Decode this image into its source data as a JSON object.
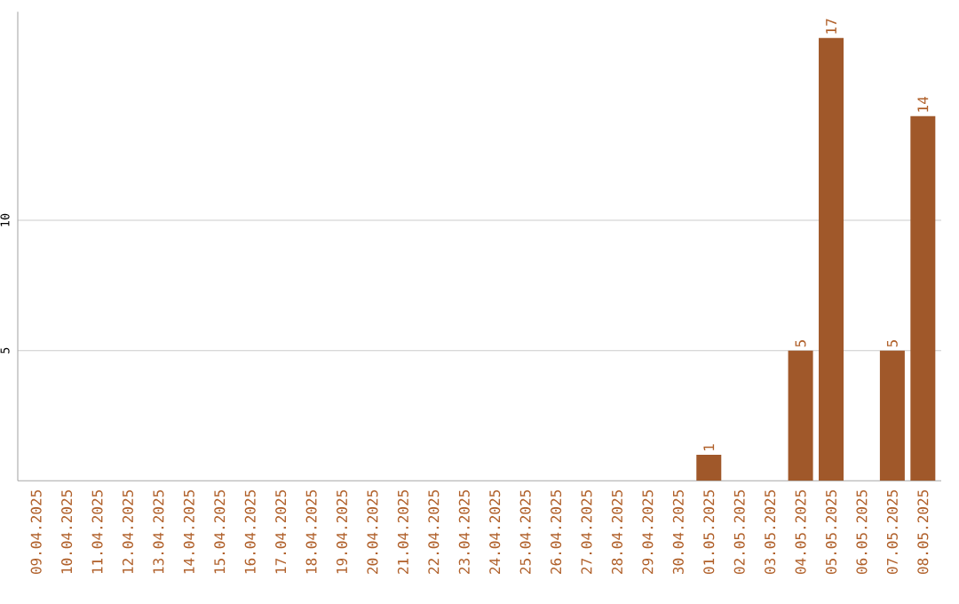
{
  "chart_data": {
    "type": "bar",
    "categories": [
      "09.04.2025",
      "10.04.2025",
      "11.04.2025",
      "12.04.2025",
      "13.04.2025",
      "14.04.2025",
      "15.04.2025",
      "16.04.2025",
      "17.04.2025",
      "18.04.2025",
      "19.04.2025",
      "20.04.2025",
      "21.04.2025",
      "22.04.2025",
      "23.04.2025",
      "24.04.2025",
      "25.04.2025",
      "26.04.2025",
      "27.04.2025",
      "28.04.2025",
      "29.04.2025",
      "30.04.2025",
      "01.05.2025",
      "02.05.2025",
      "03.05.2025",
      "04.05.2025",
      "05.05.2025",
      "06.05.2025",
      "07.05.2025",
      "08.05.2025"
    ],
    "values": [
      0,
      0,
      0,
      0,
      0,
      0,
      0,
      0,
      0,
      0,
      0,
      0,
      0,
      0,
      0,
      0,
      0,
      0,
      0,
      0,
      0,
      0,
      1,
      0,
      0,
      5,
      17,
      0,
      5,
      14
    ],
    "value_labels": [
      null,
      null,
      null,
      null,
      null,
      null,
      null,
      null,
      null,
      null,
      null,
      null,
      null,
      null,
      null,
      null,
      null,
      null,
      null,
      null,
      null,
      null,
      "1",
      null,
      null,
      "5",
      "17",
      null,
      "5",
      "14"
    ],
    "color": "#a0582a",
    "ylim": [
      0,
      18
    ],
    "yticks": [
      5,
      10
    ],
    "grid": "y"
  }
}
